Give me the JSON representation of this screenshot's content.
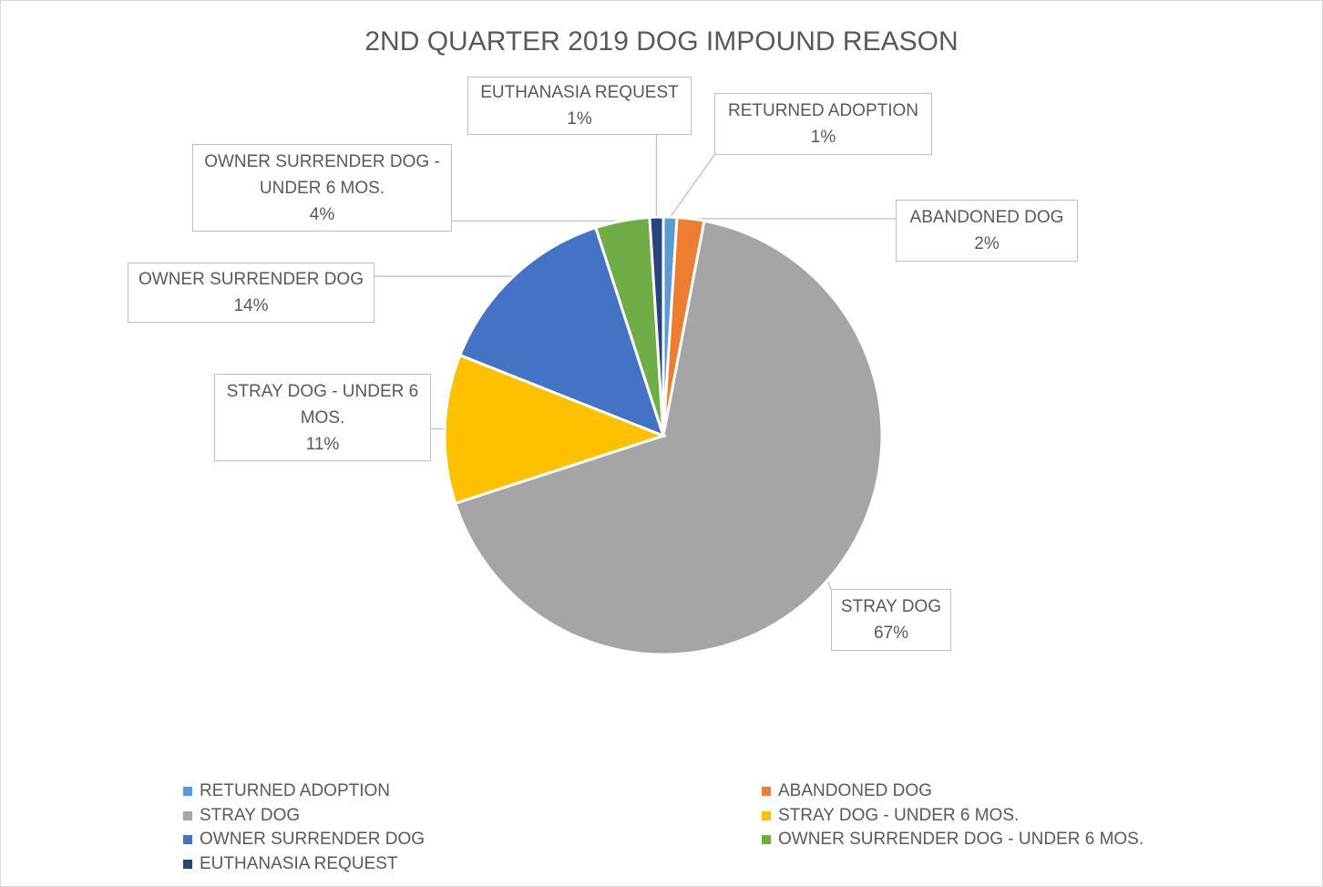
{
  "chart_data": {
    "type": "pie",
    "title": "2ND QUARTER 2019 DOG IMPOUND REASON",
    "categories": [
      "RETURNED ADOPTION",
      "ABANDONED DOG",
      "STRAY DOG",
      "STRAY DOG - UNDER 6 MOS.",
      "OWNER SURRENDER DOG",
      "OWNER SURRENDER DOG - UNDER 6 MOS.",
      "EUTHANASIA REQUEST"
    ],
    "values": [
      1,
      2,
      67,
      11,
      14,
      4,
      1
    ],
    "value_labels": [
      "1%",
      "2%",
      "67%",
      "11%",
      "14%",
      "4%",
      "1%"
    ],
    "colors": [
      "#5b9bd5",
      "#ed7d31",
      "#a5a5a5",
      "#ffc000",
      "#4472c4",
      "#70ad47",
      "#264478"
    ],
    "legend": "bottom"
  }
}
